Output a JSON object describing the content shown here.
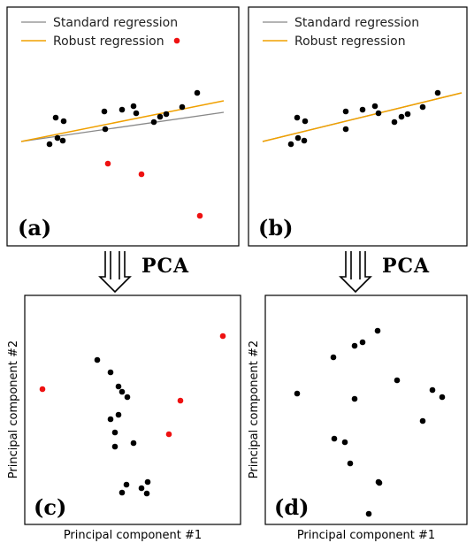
{
  "colors": {
    "inlier": "#000000",
    "outlier": "#ee1111",
    "standard": "#888888",
    "robust": "#f0a000"
  },
  "legend": {
    "standard": "Standard regression",
    "robust": "Robust regression"
  },
  "panels": {
    "a": {
      "label": "(a)"
    },
    "b": {
      "label": "(b)"
    },
    "c": {
      "label": "(c)",
      "xlabel": "Principal component #1",
      "ylabel": "Principal component #2"
    },
    "d": {
      "label": "(d)",
      "xlabel": "Principal component #1",
      "ylabel": "Principal component #2"
    }
  },
  "arrows": {
    "left": "PCA",
    "right": "PCA"
  }
}
